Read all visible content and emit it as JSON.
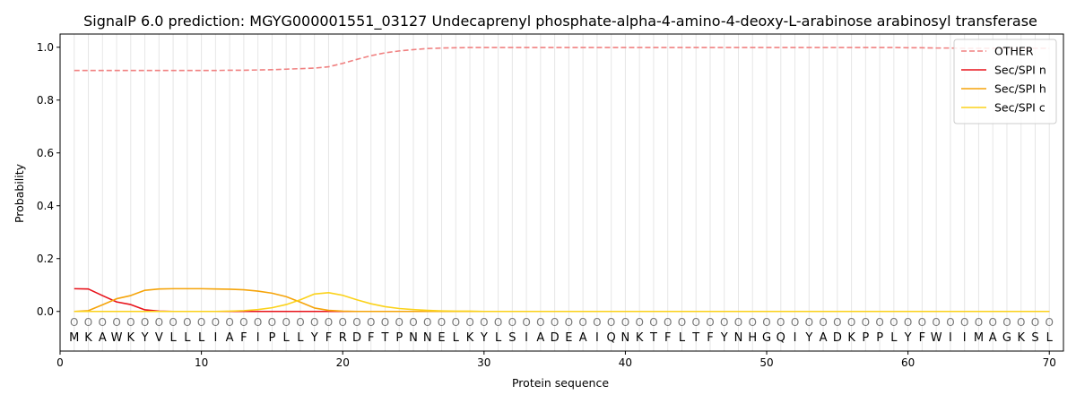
{
  "chart_data": {
    "type": "line",
    "title": "SignalP 6.0 prediction: MGYG000001551_03127 Undecaprenyl phosphate-alpha-4-amino-4-deoxy-L-arabinose arabinosyl transferase",
    "xlabel": "Protein sequence",
    "ylabel": "Probability",
    "xlim": [
      0,
      71
    ],
    "ylim": [
      -0.15,
      1.05
    ],
    "x_ticks": [
      0,
      10,
      20,
      30,
      40,
      50,
      60,
      70
    ],
    "y_ticks": [
      0.0,
      0.2,
      0.4,
      0.6,
      0.8,
      1.0
    ],
    "x_tick_labels": [
      "0",
      "10",
      "20",
      "30",
      "40",
      "50",
      "60",
      "70"
    ],
    "y_tick_labels": [
      "0.0",
      "0.2",
      "0.4",
      "0.6",
      "0.8",
      "1.0"
    ],
    "grid": "vertical lines at each residue",
    "legend_position": "top-right",
    "sequence": [
      "M",
      "K",
      "A",
      "W",
      "K",
      "Y",
      "V",
      "L",
      "L",
      "L",
      "I",
      "A",
      "F",
      "I",
      "P",
      "L",
      "L",
      "Y",
      "F",
      "R",
      "D",
      "F",
      "T",
      "P",
      "N",
      "N",
      "E",
      "L",
      "K",
      "Y",
      "L",
      "S",
      "I",
      "A",
      "D",
      "E",
      "A",
      "I",
      "Q",
      "N",
      "K",
      "T",
      "F",
      "L",
      "T",
      "F",
      "Y",
      "N",
      "H",
      "G",
      "Q",
      "I",
      "Y",
      "A",
      "D",
      "K",
      "P",
      "P",
      "L",
      "Y",
      "F",
      "W",
      "I",
      "I",
      "M",
      "A",
      "G",
      "K",
      "S",
      "L"
    ],
    "state_marker": "O",
    "series": [
      {
        "name": "OTHER",
        "color": "#f08080",
        "dash": "dashed",
        "values": [
          0.912,
          0.912,
          0.912,
          0.912,
          0.912,
          0.912,
          0.912,
          0.912,
          0.912,
          0.912,
          0.912,
          0.913,
          0.913,
          0.914,
          0.915,
          0.917,
          0.919,
          0.921,
          0.926,
          0.939,
          0.954,
          0.968,
          0.979,
          0.986,
          0.991,
          0.995,
          0.997,
          0.998,
          0.999,
          0.999,
          0.999,
          0.999,
          0.999,
          0.999,
          0.999,
          0.999,
          0.999,
          0.999,
          0.999,
          0.999,
          0.999,
          0.999,
          0.999,
          0.999,
          0.999,
          0.999,
          0.999,
          0.999,
          0.999,
          0.999,
          0.999,
          0.999,
          0.999,
          0.999,
          0.999,
          0.999,
          0.999,
          0.999,
          0.999,
          0.998,
          0.998,
          0.997,
          0.997,
          0.996,
          0.996,
          0.996,
          0.996,
          0.996,
          0.996,
          0.996
        ]
      },
      {
        "name": "Sec/SPI n",
        "color": "#e8131b",
        "dash": "solid",
        "values": [
          0.086,
          0.085,
          0.06,
          0.036,
          0.026,
          0.006,
          0.001,
          0,
          0,
          0,
          0,
          0,
          0,
          0,
          0,
          0,
          0,
          0,
          0,
          0,
          0,
          0,
          0,
          0,
          0,
          0,
          0,
          0,
          0,
          0,
          0,
          0,
          0,
          0,
          0,
          0,
          0,
          0,
          0,
          0,
          0,
          0,
          0,
          0,
          0,
          0,
          0,
          0,
          0,
          0,
          0,
          0,
          0,
          0,
          0,
          0,
          0,
          0,
          0,
          0,
          0,
          0,
          0,
          0,
          0,
          0,
          0,
          0,
          0,
          0
        ]
      },
      {
        "name": "Sec/SPI h",
        "color": "#f5a40a",
        "dash": "solid",
        "values": [
          0.0,
          0.003,
          0.025,
          0.048,
          0.06,
          0.08,
          0.085,
          0.086,
          0.086,
          0.086,
          0.085,
          0.084,
          0.082,
          0.077,
          0.069,
          0.056,
          0.035,
          0.013,
          0.004,
          0.001,
          0,
          0,
          0,
          0,
          0,
          0,
          0,
          0,
          0,
          0,
          0,
          0,
          0,
          0,
          0,
          0,
          0,
          0,
          0,
          0,
          0,
          0,
          0,
          0,
          0,
          0,
          0,
          0,
          0,
          0,
          0,
          0,
          0,
          0,
          0,
          0,
          0,
          0,
          0,
          0,
          0,
          0,
          0,
          0,
          0,
          0,
          0,
          0,
          0,
          0
        ]
      },
      {
        "name": "Sec/SPI c",
        "color": "#fbd21a",
        "dash": "solid",
        "values": [
          0,
          0,
          0,
          0,
          0,
          0,
          0,
          0,
          0,
          0,
          0,
          0.001,
          0.003,
          0.007,
          0.014,
          0.026,
          0.044,
          0.066,
          0.071,
          0.061,
          0.044,
          0.029,
          0.018,
          0.011,
          0.007,
          0.004,
          0.002,
          0.001,
          0.001,
          0,
          0,
          0,
          0,
          0,
          0,
          0,
          0,
          0,
          0,
          0,
          0,
          0,
          0,
          0,
          0,
          0,
          0,
          0,
          0,
          0,
          0,
          0,
          0,
          0,
          0,
          0,
          0,
          0,
          0,
          0,
          0,
          0,
          0,
          0,
          0,
          0,
          0,
          0,
          0,
          0
        ]
      }
    ]
  }
}
